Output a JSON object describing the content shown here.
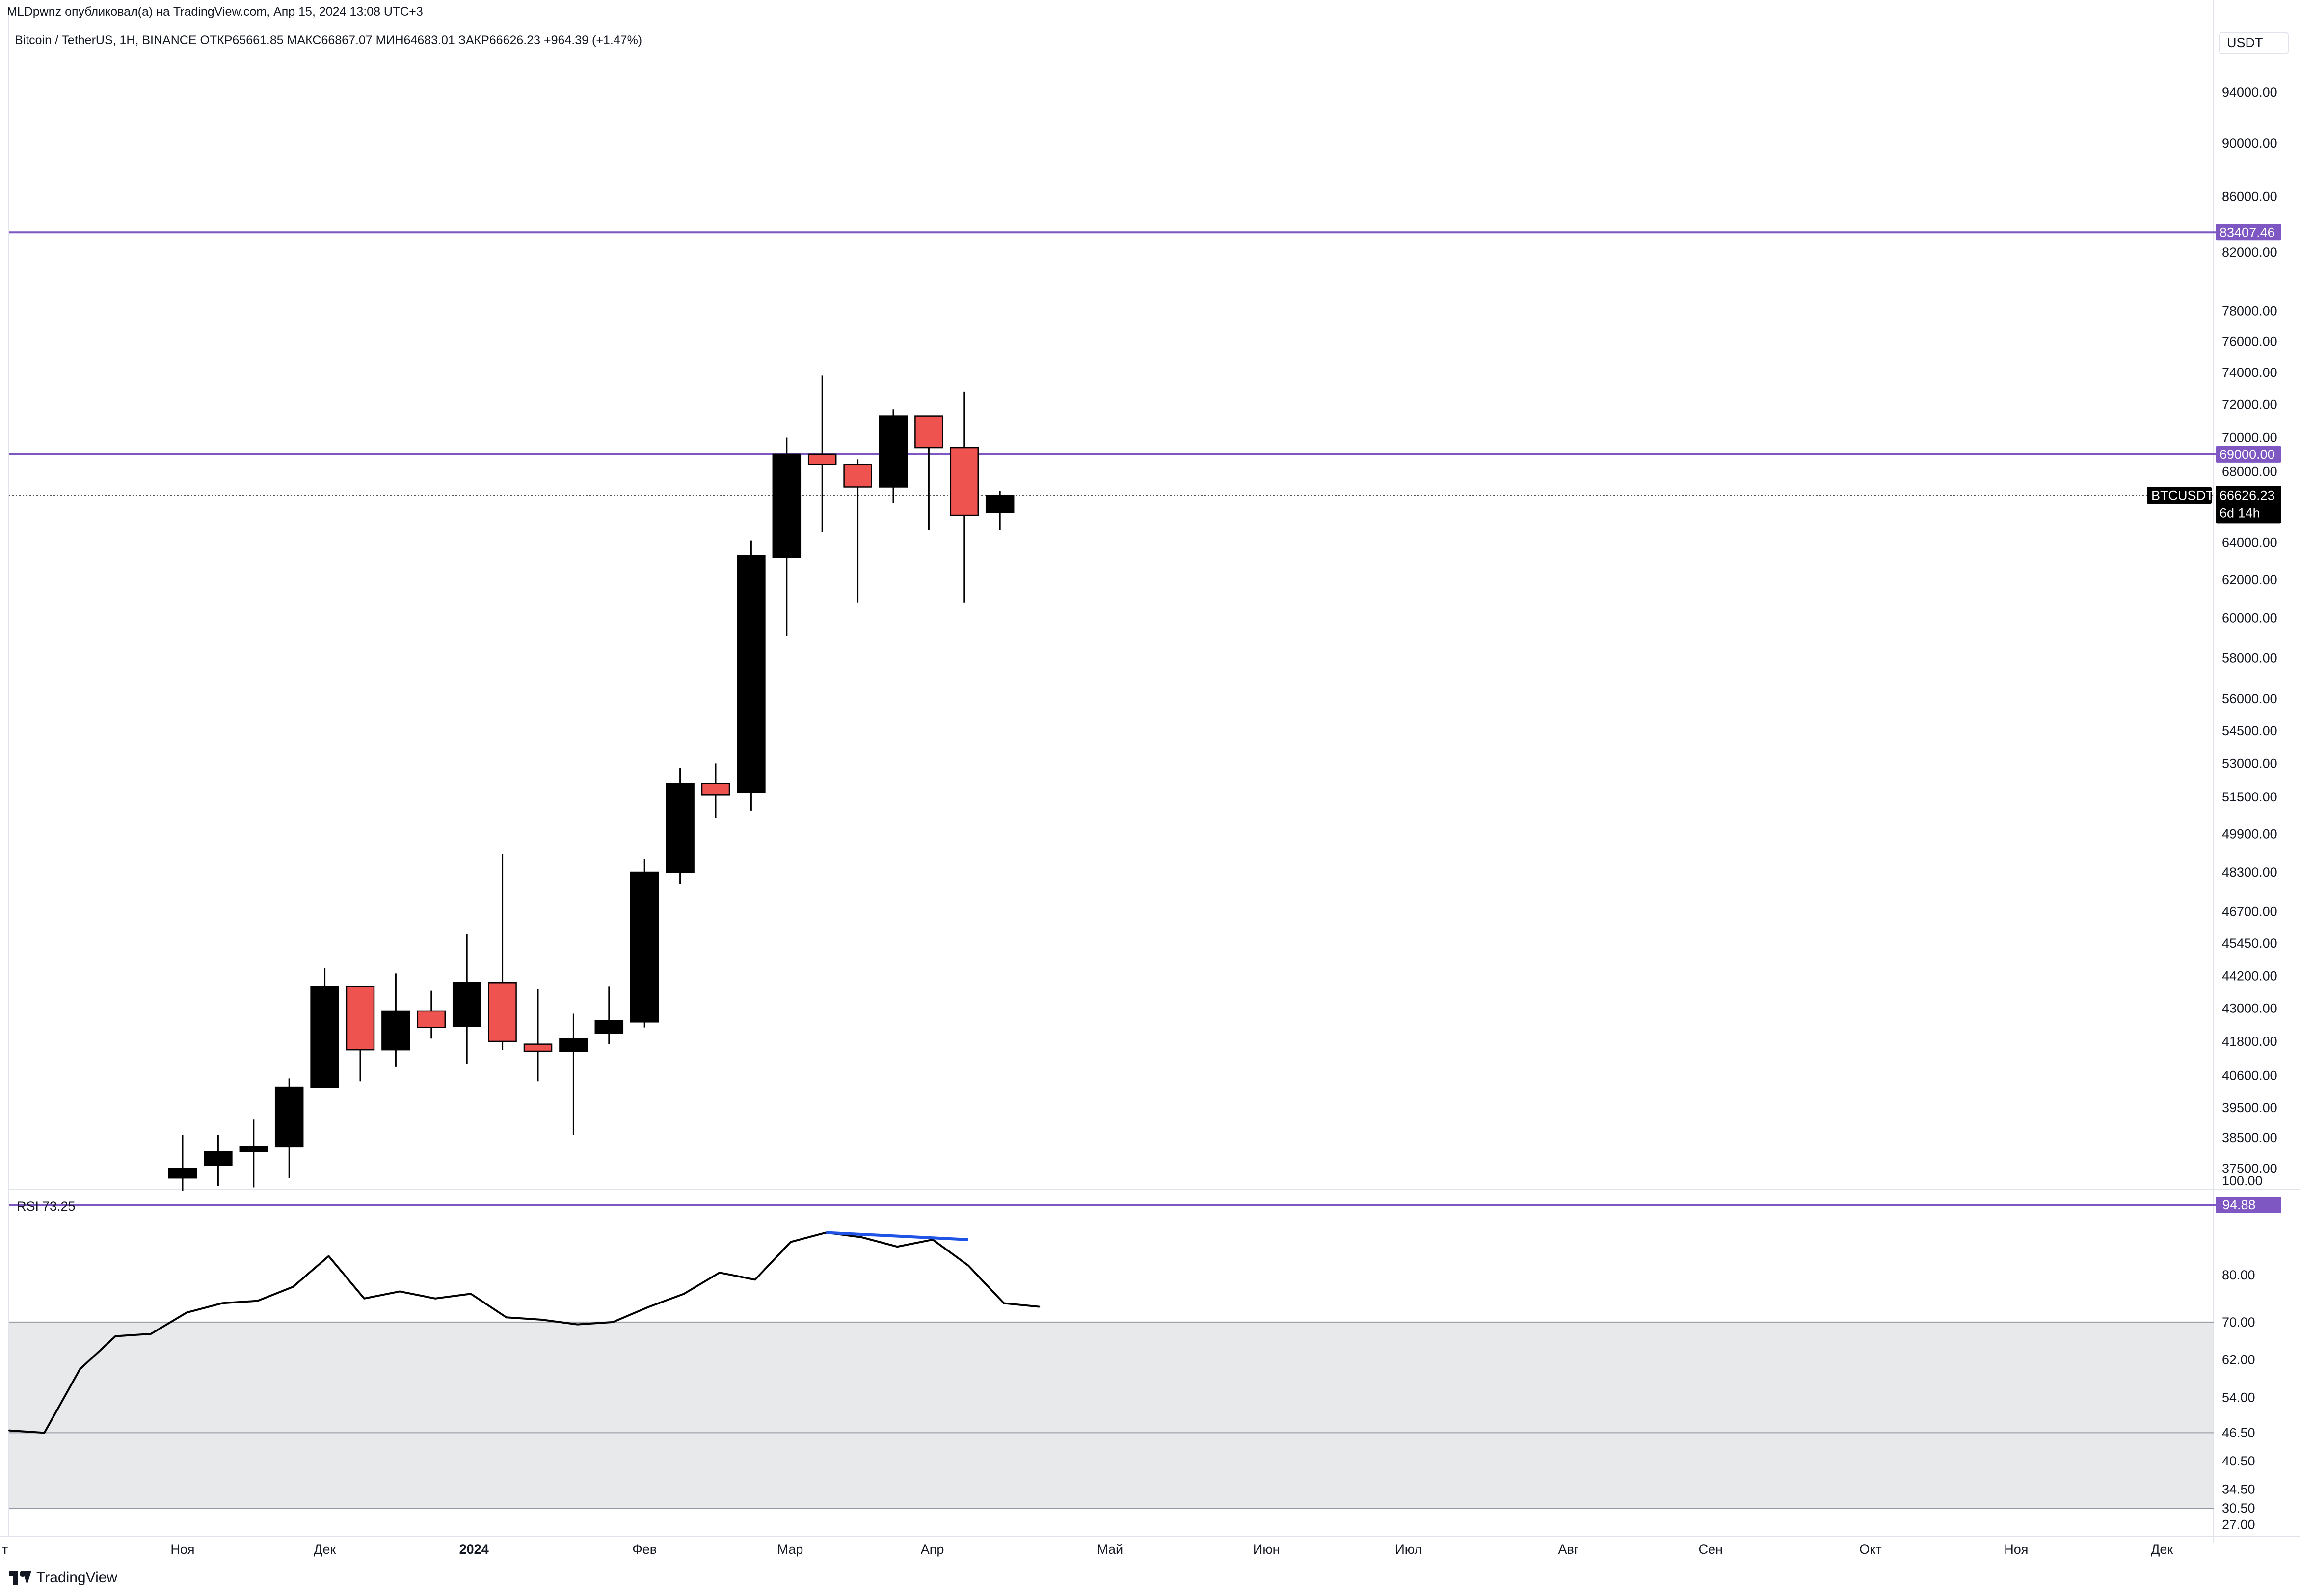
{
  "header": {
    "publisher_line": "MLDpwnz опубликовал(а) на TradingView.com, Апр 15, 2024 13:08 UTC+3",
    "symbol_line": "Bitcoin / TetherUS, 1H, BINANCE  ОТКР65661.85  МАКС66867.07  МИН64683.01  ЗАКР66626.23  +964.39 (+1.47%)"
  },
  "price_axis": {
    "currency_label": "USDT",
    "ticks": [
      {
        "label": "94000.00",
        "value": 94000
      },
      {
        "label": "90000.00",
        "value": 90000
      },
      {
        "label": "86000.00",
        "value": 86000
      },
      {
        "label": "82000.00",
        "value": 82000
      },
      {
        "label": "78000.00",
        "value": 78000
      },
      {
        "label": "76000.00",
        "value": 76000
      },
      {
        "label": "74000.00",
        "value": 74000
      },
      {
        "label": "72000.00",
        "value": 72000
      },
      {
        "label": "70000.00",
        "value": 70000
      },
      {
        "label": "68000.00",
        "value": 68000
      },
      {
        "label": "64000.00",
        "value": 64000
      },
      {
        "label": "62000.00",
        "value": 62000
      },
      {
        "label": "60000.00",
        "value": 60000
      },
      {
        "label": "58000.00",
        "value": 58000
      },
      {
        "label": "56000.00",
        "value": 56000
      },
      {
        "label": "54500.00",
        "value": 54500
      },
      {
        "label": "53000.00",
        "value": 53000
      },
      {
        "label": "51500.00",
        "value": 51500
      },
      {
        "label": "49900.00",
        "value": 49900
      },
      {
        "label": "48300.00",
        "value": 48300
      },
      {
        "label": "46700.00",
        "value": 46700
      },
      {
        "label": "45450.00",
        "value": 45450
      },
      {
        "label": "44200.00",
        "value": 44200
      },
      {
        "label": "43000.00",
        "value": 43000
      },
      {
        "label": "41800.00",
        "value": 41800
      },
      {
        "label": "40600.00",
        "value": 40600
      },
      {
        "label": "39500.00",
        "value": 39500
      },
      {
        "label": "38500.00",
        "value": 38500
      },
      {
        "label": "37500.00",
        "value": 37500
      }
    ],
    "last_price_tag": "66626.23",
    "countdown_tag": "6d 14h",
    "symbol_tag": "BTCUSDT"
  },
  "rsi": {
    "label": "RSI",
    "value": "73.25",
    "ticks": [
      {
        "label": "100.00",
        "value": 100
      },
      {
        "label": "80.00",
        "value": 80
      },
      {
        "label": "70.00",
        "value": 70
      },
      {
        "label": "62.00",
        "value": 62
      },
      {
        "label": "54.00",
        "value": 54
      },
      {
        "label": "46.50",
        "value": 46.5
      },
      {
        "label": "40.50",
        "value": 40.5
      },
      {
        "label": "34.50",
        "value": 34.5
      },
      {
        "label": "30.50",
        "value": 30.5
      },
      {
        "label": "27.00",
        "value": 27
      }
    ]
  },
  "time_axis": {
    "labels": [
      {
        "label": "т",
        "index": -5.0
      },
      {
        "label": "Ноя",
        "index": 0.0
      },
      {
        "label": "Дек",
        "index": 4.0
      },
      {
        "label": "2024",
        "index": 8.2,
        "bold": true
      },
      {
        "label": "Фев",
        "index": 13.0
      },
      {
        "label": "Мар",
        "index": 17.1
      },
      {
        "label": "Апр",
        "index": 21.1
      },
      {
        "label": "Май",
        "index": 26.1
      },
      {
        "label": "Июн",
        "index": 30.5
      },
      {
        "label": "Июл",
        "index": 34.5
      },
      {
        "label": "Авг",
        "index": 39.0
      },
      {
        "label": "Сен",
        "index": 43.0
      },
      {
        "label": "Окт",
        "index": 47.5
      },
      {
        "label": "Ноя",
        "index": 51.6
      },
      {
        "label": "Дек",
        "index": 55.7
      }
    ]
  },
  "brand": {
    "name": "TradingView"
  },
  "colors": {
    "bull": "#000000",
    "bear": "#ef5350",
    "level_line": "#7e57c2",
    "divergence": "#1e53e5",
    "rsi_band": "#e8e9eb"
  },
  "chart_data": {
    "type": "candlestick",
    "title": "Bitcoin / TetherUS, 1H, BINANCE",
    "price_scale": "log",
    "ylim": [
      37000,
      97000
    ],
    "horizontal_levels": [
      {
        "value": 83407.46,
        "label": "83407.46"
      },
      {
        "value": 69000.0,
        "label": "69000.00"
      }
    ],
    "last_price": 66626.23,
    "candles": [
      {
        "open": 37200,
        "high": 38600,
        "low": 36800,
        "close": 37500
      },
      {
        "open": 37600,
        "high": 38600,
        "low": 36950,
        "close": 38050
      },
      {
        "open": 38050,
        "high": 39100,
        "low": 36900,
        "close": 38200
      },
      {
        "open": 38200,
        "high": 40500,
        "low": 37200,
        "close": 40200
      },
      {
        "open": 40200,
        "high": 44500,
        "low": 40300,
        "close": 43800
      },
      {
        "open": 43800,
        "high": 43800,
        "low": 40400,
        "close": 41500
      },
      {
        "open": 41500,
        "high": 44300,
        "low": 40900,
        "close": 42900
      },
      {
        "open": 42900,
        "high": 43650,
        "low": 41900,
        "close": 42300
      },
      {
        "open": 42350,
        "high": 45800,
        "low": 41000,
        "close": 43950
      },
      {
        "open": 43950,
        "high": 49050,
        "low": 41500,
        "close": 41800
      },
      {
        "open": 41700,
        "high": 43700,
        "low": 40400,
        "close": 41450
      },
      {
        "open": 41450,
        "high": 42800,
        "low": 38600,
        "close": 41900
      },
      {
        "open": 42100,
        "high": 43800,
        "low": 41700,
        "close": 42550
      },
      {
        "open": 42500,
        "high": 48850,
        "low": 42300,
        "close": 48300
      },
      {
        "open": 48300,
        "high": 52800,
        "low": 47800,
        "close": 52100
      },
      {
        "open": 52100,
        "high": 53000,
        "low": 50600,
        "close": 51600
      },
      {
        "open": 51700,
        "high": 64100,
        "low": 50900,
        "close": 63300
      },
      {
        "open": 63200,
        "high": 70000,
        "low": 59100,
        "close": 69000
      },
      {
        "open": 69000,
        "high": 73800,
        "low": 64600,
        "close": 68400
      },
      {
        "open": 68400,
        "high": 68700,
        "low": 60800,
        "close": 67100
      },
      {
        "open": 67100,
        "high": 71700,
        "low": 66200,
        "close": 71300
      },
      {
        "open": 71300,
        "high": 71300,
        "low": 64700,
        "close": 69400
      },
      {
        "open": 69400,
        "high": 72800,
        "low": 60800,
        "close": 65500
      },
      {
        "open": 65661.85,
        "high": 66867.07,
        "low": 64683.01,
        "close": 66626.23
      }
    ],
    "rsi_series": {
      "name": "RSI",
      "values": [
        47,
        46.5,
        60,
        67,
        67.5,
        72,
        74,
        74.5,
        77.5,
        84,
        75,
        76.5,
        75,
        76,
        71,
        70.5,
        69.5,
        70,
        73.2,
        76,
        80.5,
        79,
        87,
        89,
        88,
        86,
        87.5,
        82,
        74,
        73.25
      ]
    },
    "rsi_levels": [
      {
        "value": 94.88,
        "label": "94.88"
      },
      {
        "value": 70
      },
      {
        "value": 46.5
      },
      {
        "value": 30.5
      }
    ],
    "rsi_band": [
      30.5,
      70
    ],
    "divergence_segment": {
      "from_index": 23,
      "to_index": 27,
      "from_value": 89,
      "to_value": 87.5
    }
  }
}
